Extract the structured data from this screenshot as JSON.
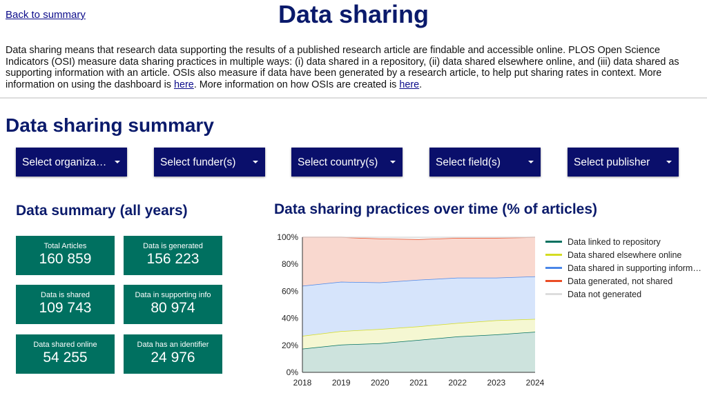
{
  "back_link": "Back to summary",
  "title": "Data sharing",
  "intro": {
    "text1": "Data sharing means that research data supporting the results of a published research article are findable and accessible online. PLOS Open Science Indicators (OSI) measure data sharing practices in multiple ways: (i) data shared in a repository, (ii) data shared elsewhere online, and (iii) data shared as supporting information with an article. OSIs also measure if data have been generated by a research article, to help put sharing rates in context. More information on using the dashboard is ",
    "link1": "here",
    "text2": ". More information on how OSIs are created is ",
    "link2": "here",
    "text3": "."
  },
  "summary_title": "Data sharing summary",
  "filters": [
    "Select organizat…",
    "Select funder(s)",
    "Select country(s)",
    "Select field(s)",
    "Select publisher"
  ],
  "data_summary_title": "Data summary (all years)",
  "cards": [
    {
      "label": "Total Articles",
      "value": "160 859"
    },
    {
      "label": "Data is generated",
      "value": "156 223"
    },
    {
      "label": "Data is shared",
      "value": "109 743"
    },
    {
      "label": "Data in supporting info",
      "value": "80 974"
    },
    {
      "label": "Data shared online",
      "value": "54 255"
    },
    {
      "label": "Data has an identifier",
      "value": "24 976"
    }
  ],
  "chart_data": {
    "type": "area",
    "stacked": true,
    "title": "Data sharing practices over time (% of articles)",
    "x": [
      "2018",
      "2019",
      "2020",
      "2021",
      "2022",
      "2023",
      "2024"
    ],
    "yticks": [
      "0%",
      "20%",
      "40%",
      "60%",
      "80%",
      "100%"
    ],
    "ylim": [
      0,
      100
    ],
    "legend_position": "right",
    "series": [
      {
        "name": "Data linked to repository",
        "color": "#00705f",
        "fill": "#cde3dd",
        "values": [
          17.5,
          20.5,
          21.5,
          24,
          26.5,
          28,
          30
        ]
      },
      {
        "name": "Data shared elsewhere online",
        "color": "#d4dc22",
        "fill": "#f5f7d2",
        "values": [
          9.5,
          10,
          10.5,
          10,
          10,
          10.5,
          9.5
        ]
      },
      {
        "name": "Data shared in supporting inform…",
        "color": "#4a86e8",
        "fill": "#d6e4fb",
        "values": [
          37,
          36.5,
          34.5,
          34.5,
          33.5,
          31.5,
          31.5
        ]
      },
      {
        "name": "Data generated, not shared",
        "color": "#ea4c25",
        "fill": "#f9d8cf",
        "values": [
          36,
          33,
          32.5,
          30,
          29.5,
          29.5,
          29
        ]
      },
      {
        "name": "Data not generated",
        "color": "#dddddd",
        "fill": "#f4f4f4",
        "values": [
          0,
          0,
          1,
          1.5,
          0.5,
          0.5,
          0
        ]
      }
    ]
  }
}
